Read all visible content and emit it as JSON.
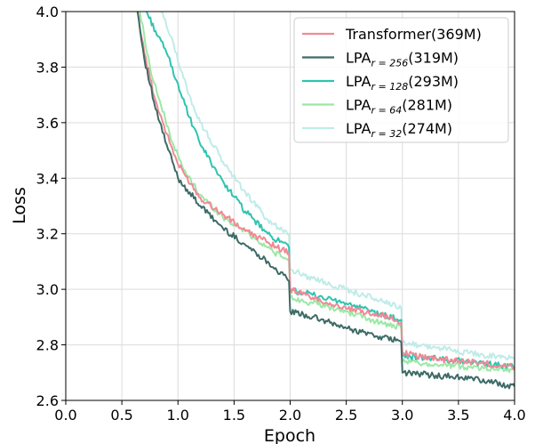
{
  "chart_data": {
    "type": "line",
    "title": "",
    "xlabel": "Epoch",
    "ylabel": "Loss",
    "xlim": [
      0.0,
      4.0
    ],
    "ylim": [
      2.6,
      4.0
    ],
    "xticks": [
      "0.0",
      "0.5",
      "1.0",
      "1.5",
      "2.0",
      "2.5",
      "3.0",
      "3.5",
      "4.0"
    ],
    "yticks": [
      "2.6",
      "2.8",
      "3.0",
      "3.2",
      "3.4",
      "3.6",
      "3.8",
      "4.0"
    ],
    "grid": true,
    "legend_position": "top-right",
    "series": [
      {
        "name": "Transformer(369M)",
        "legend_main": "Transformer(369M)",
        "legend_sub": "",
        "legend_tail": "",
        "color": "#f08a96",
        "points": [
          [
            0.64,
            4.0
          ],
          [
            0.7,
            3.85
          ],
          [
            0.8,
            3.68
          ],
          [
            0.9,
            3.56
          ],
          [
            1.0,
            3.45
          ],
          [
            1.2,
            3.33
          ],
          [
            1.4,
            3.27
          ],
          [
            1.6,
            3.21
          ],
          [
            1.8,
            3.17
          ],
          [
            1.99,
            3.13
          ],
          [
            2.0,
            3.0
          ],
          [
            2.2,
            2.97
          ],
          [
            2.5,
            2.93
          ],
          [
            2.8,
            2.91
          ],
          [
            2.99,
            2.88
          ],
          [
            3.0,
            2.77
          ],
          [
            3.3,
            2.75
          ],
          [
            3.6,
            2.74
          ],
          [
            4.0,
            2.72
          ]
        ]
      },
      {
        "name": "LPA_{r=256}(319M)",
        "legend_main": "LPA",
        "legend_sub": "r = 256",
        "legend_tail": "(319M)",
        "color": "#3d6b66",
        "points": [
          [
            0.64,
            4.0
          ],
          [
            0.7,
            3.83
          ],
          [
            0.8,
            3.65
          ],
          [
            0.9,
            3.52
          ],
          [
            1.0,
            3.4
          ],
          [
            1.2,
            3.3
          ],
          [
            1.4,
            3.22
          ],
          [
            1.6,
            3.16
          ],
          [
            1.8,
            3.1
          ],
          [
            1.99,
            3.03
          ],
          [
            2.0,
            2.92
          ],
          [
            2.2,
            2.9
          ],
          [
            2.5,
            2.86
          ],
          [
            2.8,
            2.83
          ],
          [
            2.99,
            2.81
          ],
          [
            3.0,
            2.7
          ],
          [
            3.3,
            2.69
          ],
          [
            3.6,
            2.68
          ],
          [
            4.0,
            2.65
          ]
        ]
      },
      {
        "name": "LPA_{r=128}(293M)",
        "legend_main": "LPA",
        "legend_sub": "r = 128",
        "legend_tail": "(293M)",
        "color": "#2ec4b0",
        "points": [
          [
            0.72,
            4.0
          ],
          [
            0.8,
            3.93
          ],
          [
            0.9,
            3.85
          ],
          [
            1.0,
            3.74
          ],
          [
            1.1,
            3.62
          ],
          [
            1.2,
            3.52
          ],
          [
            1.4,
            3.39
          ],
          [
            1.6,
            3.28
          ],
          [
            1.8,
            3.2
          ],
          [
            1.99,
            3.15
          ],
          [
            2.0,
            3.0
          ],
          [
            2.2,
            2.98
          ],
          [
            2.5,
            2.95
          ],
          [
            2.8,
            2.91
          ],
          [
            2.99,
            2.89
          ],
          [
            3.0,
            2.76
          ],
          [
            3.3,
            2.75
          ],
          [
            3.6,
            2.74
          ],
          [
            4.0,
            2.72
          ]
        ]
      },
      {
        "name": "LPA_{r=64}(281M)",
        "legend_main": "LPA",
        "legend_sub": "r = 64",
        "legend_tail": "(281M)",
        "color": "#9be8a4",
        "points": [
          [
            0.66,
            4.0
          ],
          [
            0.75,
            3.8
          ],
          [
            0.85,
            3.66
          ],
          [
            0.95,
            3.53
          ],
          [
            1.05,
            3.43
          ],
          [
            1.2,
            3.34
          ],
          [
            1.4,
            3.26
          ],
          [
            1.6,
            3.21
          ],
          [
            1.8,
            3.15
          ],
          [
            1.99,
            3.1
          ],
          [
            2.0,
            2.97
          ],
          [
            2.2,
            2.95
          ],
          [
            2.5,
            2.92
          ],
          [
            2.8,
            2.88
          ],
          [
            2.99,
            2.86
          ],
          [
            3.0,
            2.74
          ],
          [
            3.3,
            2.73
          ],
          [
            3.6,
            2.72
          ],
          [
            4.0,
            2.71
          ]
        ]
      },
      {
        "name": "LPA_{r=32}(274M)",
        "legend_main": "LPA",
        "legend_sub": "r = 32",
        "legend_tail": "(274M)",
        "color": "#bfece8",
        "points": [
          [
            0.85,
            4.0
          ],
          [
            0.95,
            3.9
          ],
          [
            1.0,
            3.82
          ],
          [
            1.1,
            3.7
          ],
          [
            1.2,
            3.6
          ],
          [
            1.4,
            3.46
          ],
          [
            1.6,
            3.35
          ],
          [
            1.8,
            3.25
          ],
          [
            1.99,
            3.2
          ],
          [
            2.0,
            3.07
          ],
          [
            2.2,
            3.04
          ],
          [
            2.5,
            3.0
          ],
          [
            2.8,
            2.96
          ],
          [
            2.99,
            2.93
          ],
          [
            3.0,
            2.81
          ],
          [
            3.3,
            2.79
          ],
          [
            3.6,
            2.77
          ],
          [
            4.0,
            2.75
          ]
        ]
      }
    ]
  }
}
